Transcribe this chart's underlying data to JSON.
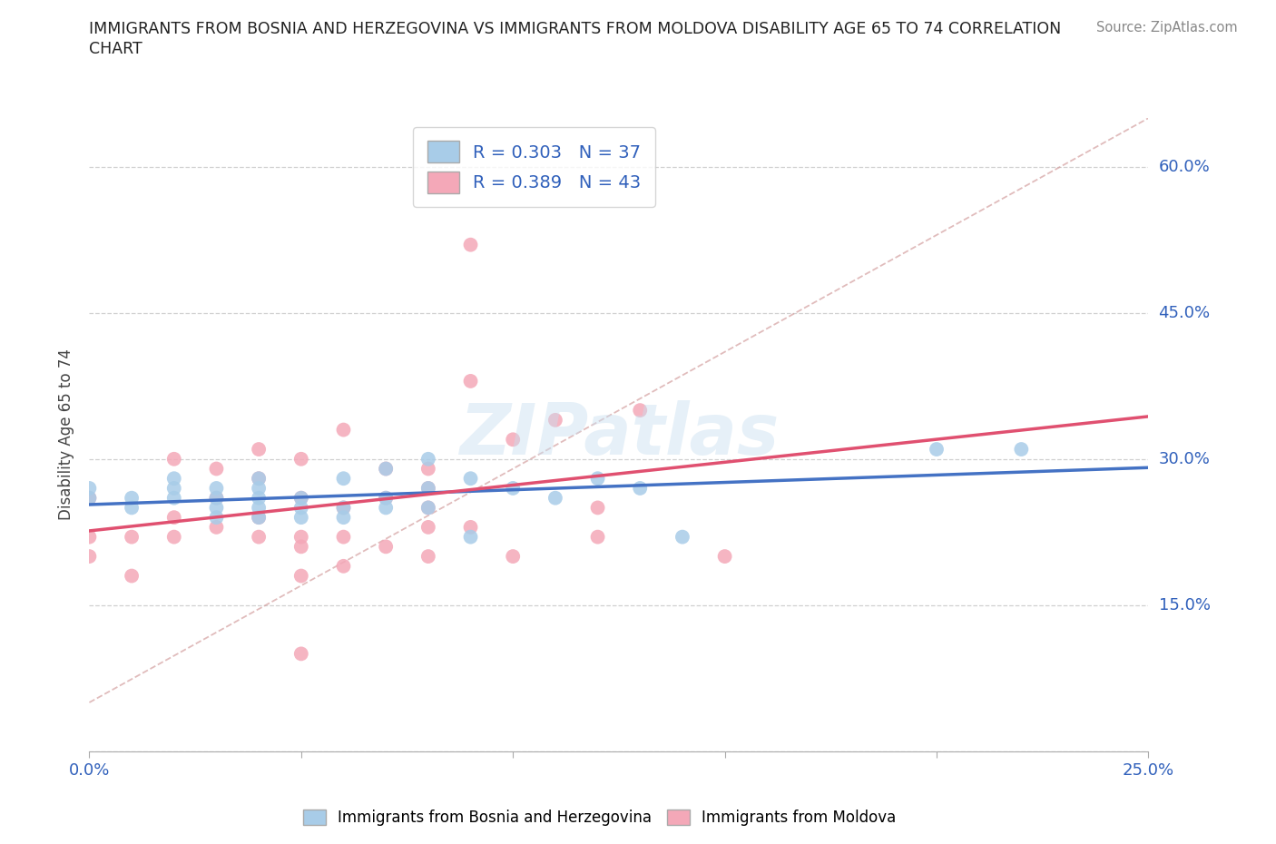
{
  "title_line1": "IMMIGRANTS FROM BOSNIA AND HERZEGOVINA VS IMMIGRANTS FROM MOLDOVA DISABILITY AGE 65 TO 74 CORRELATION",
  "title_line2": "CHART",
  "source": "Source: ZipAtlas.com",
  "ylabel": "Disability Age 65 to 74",
  "xlim": [
    0.0,
    0.25
  ],
  "ylim": [
    0.0,
    0.65
  ],
  "x_ticks": [
    0.0,
    0.05,
    0.1,
    0.15,
    0.2,
    0.25
  ],
  "y_ticks": [
    0.0,
    0.15,
    0.3,
    0.45,
    0.6
  ],
  "bosnia_color": "#a8cce8",
  "moldova_color": "#f4a8b8",
  "bosnia_line_color": "#4472c4",
  "moldova_line_color": "#e05070",
  "ref_line_color": "#d4a0a0",
  "grid_color": "#d0d0d0",
  "watermark": "ZIPatlas",
  "R_bosnia": 0.303,
  "N_bosnia": 37,
  "R_moldova": 0.389,
  "N_moldova": 43,
  "bosnia_x": [
    0.0,
    0.0,
    0.01,
    0.01,
    0.02,
    0.02,
    0.02,
    0.03,
    0.03,
    0.03,
    0.03,
    0.04,
    0.04,
    0.04,
    0.04,
    0.04,
    0.05,
    0.05,
    0.05,
    0.06,
    0.06,
    0.06,
    0.07,
    0.07,
    0.07,
    0.08,
    0.08,
    0.08,
    0.09,
    0.09,
    0.1,
    0.11,
    0.12,
    0.13,
    0.14,
    0.2,
    0.22
  ],
  "bosnia_y": [
    0.26,
    0.27,
    0.25,
    0.26,
    0.26,
    0.27,
    0.28,
    0.24,
    0.25,
    0.26,
    0.27,
    0.24,
    0.25,
    0.26,
    0.27,
    0.28,
    0.24,
    0.25,
    0.26,
    0.24,
    0.25,
    0.28,
    0.25,
    0.26,
    0.29,
    0.25,
    0.27,
    0.3,
    0.22,
    0.28,
    0.27,
    0.26,
    0.28,
    0.27,
    0.22,
    0.31,
    0.31
  ],
  "moldova_x": [
    0.0,
    0.0,
    0.0,
    0.01,
    0.01,
    0.02,
    0.02,
    0.02,
    0.03,
    0.03,
    0.03,
    0.04,
    0.04,
    0.04,
    0.04,
    0.05,
    0.05,
    0.05,
    0.05,
    0.06,
    0.06,
    0.06,
    0.06,
    0.07,
    0.07,
    0.07,
    0.08,
    0.08,
    0.08,
    0.08,
    0.08,
    0.09,
    0.09,
    0.1,
    0.1,
    0.11,
    0.12,
    0.12,
    0.13,
    0.15,
    0.09,
    0.05,
    0.05
  ],
  "moldova_y": [
    0.2,
    0.22,
    0.26,
    0.18,
    0.22,
    0.22,
    0.24,
    0.3,
    0.23,
    0.26,
    0.29,
    0.22,
    0.24,
    0.28,
    0.31,
    0.18,
    0.22,
    0.26,
    0.3,
    0.19,
    0.22,
    0.25,
    0.33,
    0.21,
    0.26,
    0.29,
    0.2,
    0.23,
    0.25,
    0.27,
    0.29,
    0.23,
    0.38,
    0.2,
    0.32,
    0.34,
    0.22,
    0.25,
    0.35,
    0.2,
    0.52,
    0.1,
    0.21
  ],
  "background_color": "#ffffff"
}
